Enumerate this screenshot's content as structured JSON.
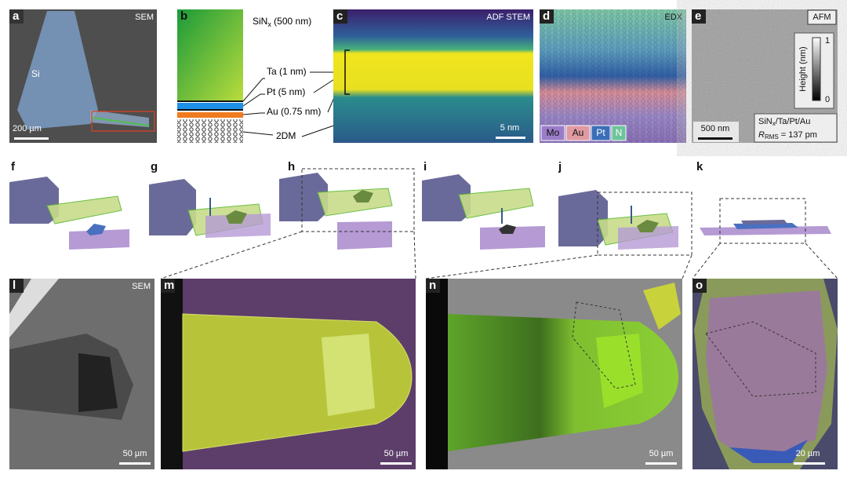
{
  "panels": {
    "a": {
      "label": "a",
      "tag": "SEM",
      "annotation": "Si",
      "scale_bar": "200 µm"
    },
    "b": {
      "label": "b",
      "sinx": {
        "main": "SiN",
        "sub": "x",
        "rest": " (500 nm)"
      },
      "layers": [
        "Ta (1 nm)",
        "Pt (5 nm)",
        "Au (0.75 nm)",
        "2DM"
      ]
    },
    "c": {
      "label": "c",
      "tag": "ADF STEM",
      "scale_bar": "5 nm"
    },
    "d": {
      "label": "d",
      "tag": "EDX",
      "legend": [
        "Mo",
        "Au",
        "Pt",
        "N"
      ]
    },
    "e": {
      "label": "e",
      "tag": "AFM",
      "colorbar_label": "Height (nm)",
      "colorbar_ticks": [
        1,
        0
      ],
      "scale_bar": "500 nm",
      "stack": {
        "main": "SiN",
        "sub": "x",
        "rest": "/Ta/Pt/Au"
      },
      "roughness": {
        "main": "R",
        "sub": "RMS",
        "rest": " = 137 pm"
      }
    },
    "f": {
      "label": "f"
    },
    "g": {
      "label": "g"
    },
    "h": {
      "label": "h"
    },
    "i": {
      "label": "i"
    },
    "j": {
      "label": "j"
    },
    "k": {
      "label": "k"
    },
    "l": {
      "label": "l",
      "tag": "SEM",
      "scale_bar": "50 µm"
    },
    "m": {
      "label": "m",
      "scale_bar": "50 µm"
    },
    "n": {
      "label": "n",
      "scale_bar": "50 µm"
    },
    "o": {
      "label": "o",
      "scale_bar": "20 µm"
    }
  }
}
